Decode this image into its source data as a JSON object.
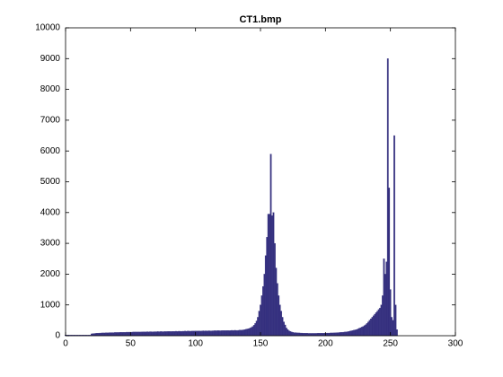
{
  "chart_data": {
    "type": "histogram",
    "title": "CT1.bmp",
    "color": "#35307f",
    "x": [
      0,
      1,
      2,
      3,
      4,
      5,
      6,
      7,
      8,
      9,
      10,
      11,
      12,
      13,
      14,
      15,
      16,
      17,
      18,
      19,
      20,
      21,
      22,
      23,
      24,
      25,
      26,
      27,
      28,
      29,
      30,
      31,
      32,
      33,
      34,
      35,
      36,
      37,
      38,
      39,
      40,
      41,
      42,
      43,
      44,
      45,
      46,
      47,
      48,
      49,
      50,
      51,
      52,
      53,
      54,
      55,
      56,
      57,
      58,
      59,
      60,
      61,
      62,
      63,
      64,
      65,
      66,
      67,
      68,
      69,
      70,
      71,
      72,
      73,
      74,
      75,
      76,
      77,
      78,
      79,
      80,
      81,
      82,
      83,
      84,
      85,
      86,
      87,
      88,
      89,
      90,
      91,
      92,
      93,
      94,
      95,
      96,
      97,
      98,
      99,
      100,
      101,
      102,
      103,
      104,
      105,
      106,
      107,
      108,
      109,
      110,
      111,
      112,
      113,
      114,
      115,
      116,
      117,
      118,
      119,
      120,
      121,
      122,
      123,
      124,
      125,
      126,
      127,
      128,
      129,
      130,
      131,
      132,
      133,
      134,
      135,
      136,
      137,
      138,
      139,
      140,
      141,
      142,
      143,
      144,
      145,
      146,
      147,
      148,
      149,
      150,
      151,
      152,
      153,
      154,
      155,
      156,
      157,
      158,
      159,
      160,
      161,
      162,
      163,
      164,
      165,
      166,
      167,
      168,
      169,
      170,
      171,
      172,
      173,
      174,
      175,
      176,
      177,
      178,
      179,
      180,
      181,
      182,
      183,
      184,
      185,
      186,
      187,
      188,
      189,
      190,
      191,
      192,
      193,
      194,
      195,
      196,
      197,
      198,
      199,
      200,
      201,
      202,
      203,
      204,
      205,
      206,
      207,
      208,
      209,
      210,
      211,
      212,
      213,
      214,
      215,
      216,
      217,
      218,
      219,
      220,
      221,
      222,
      223,
      224,
      225,
      226,
      227,
      228,
      229,
      230,
      231,
      232,
      233,
      234,
      235,
      236,
      237,
      238,
      239,
      240,
      241,
      242,
      243,
      244,
      245,
      246,
      247,
      248,
      249,
      250,
      251,
      252,
      253,
      254,
      255
    ],
    "values": [
      20,
      20,
      20,
      20,
      20,
      20,
      20,
      20,
      20,
      20,
      20,
      20,
      20,
      20,
      20,
      20,
      20,
      20,
      20,
      20,
      60,
      70,
      70,
      75,
      80,
      80,
      85,
      85,
      90,
      90,
      90,
      95,
      95,
      95,
      100,
      100,
      100,
      100,
      105,
      105,
      105,
      105,
      110,
      110,
      110,
      110,
      110,
      115,
      115,
      115,
      115,
      115,
      120,
      120,
      120,
      120,
      120,
      120,
      120,
      125,
      125,
      125,
      125,
      130,
      125,
      130,
      130,
      125,
      130,
      130,
      130,
      135,
      130,
      135,
      135,
      130,
      135,
      135,
      135,
      140,
      140,
      135,
      140,
      140,
      140,
      145,
      140,
      145,
      145,
      140,
      145,
      145,
      150,
      145,
      150,
      150,
      145,
      150,
      150,
      150,
      155,
      150,
      155,
      155,
      150,
      155,
      160,
      155,
      160,
      155,
      160,
      160,
      155,
      160,
      160,
      165,
      160,
      165,
      165,
      160,
      165,
      165,
      170,
      165,
      170,
      170,
      165,
      170,
      175,
      170,
      175,
      175,
      170,
      175,
      180,
      180,
      185,
      190,
      200,
      210,
      220,
      230,
      250,
      270,
      300,
      340,
      400,
      480,
      600,
      800,
      1000,
      1300,
      1600,
      2000,
      2600,
      3200,
      3950,
      3950,
      5900,
      3900,
      4000,
      3000,
      2200,
      1700,
      1300,
      1000,
      800,
      600,
      450,
      350,
      250,
      200,
      160,
      140,
      120,
      110,
      100,
      100,
      95,
      90,
      90,
      85,
      85,
      80,
      80,
      80,
      80,
      75,
      75,
      75,
      75,
      75,
      75,
      75,
      80,
      80,
      80,
      80,
      80,
      80,
      80,
      85,
      85,
      85,
      90,
      90,
      90,
      95,
      95,
      100,
      100,
      105,
      110,
      110,
      115,
      120,
      125,
      130,
      140,
      150,
      160,
      170,
      180,
      190,
      200,
      220,
      240,
      260,
      280,
      300,
      330,
      360,
      400,
      450,
      500,
      550,
      600,
      650,
      700,
      750,
      800,
      850,
      900,
      1000,
      1300,
      2500,
      2000,
      2400,
      9000,
      4800,
      1500,
      600,
      500,
      6500,
      1000,
      200
    ],
    "xlim": [
      0,
      300
    ],
    "xticks": [
      0,
      50,
      100,
      150,
      200,
      250,
      300
    ],
    "ylim": [
      0,
      10000
    ],
    "yticks": [
      0,
      1000,
      2000,
      3000,
      4000,
      5000,
      6000,
      7000,
      8000,
      9000,
      10000
    ]
  }
}
